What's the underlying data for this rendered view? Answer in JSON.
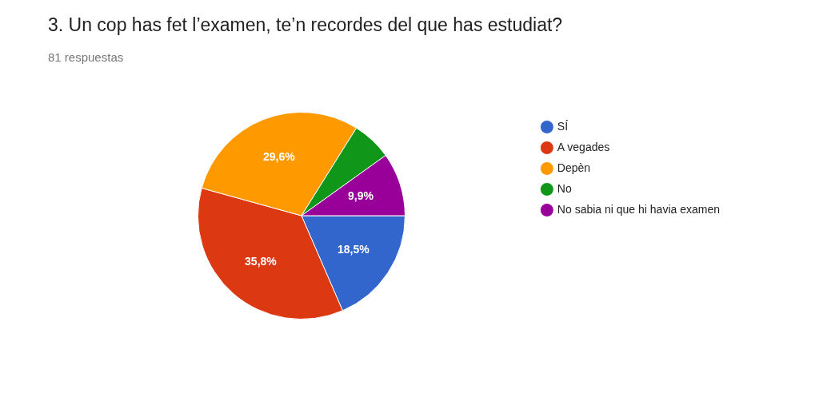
{
  "chart_data": {
    "type": "pie",
    "title": "3. Un cop has fet l’examen, te’n recordes del que has estudiat?",
    "subtitle": "81 respuestas",
    "categories": [
      "SÍ",
      "A vegades",
      "Depèn",
      "No",
      "No sabia ni que hi havia examen"
    ],
    "values": [
      18.5,
      35.8,
      29.6,
      6.2,
      9.9
    ],
    "colors": [
      "#3366cc",
      "#dc3912",
      "#ff9900",
      "#109618",
      "#990099"
    ],
    "value_labels": [
      "18,5%",
      "35,8%",
      "29,6%",
      null,
      "9,9%"
    ],
    "legend": "right"
  }
}
